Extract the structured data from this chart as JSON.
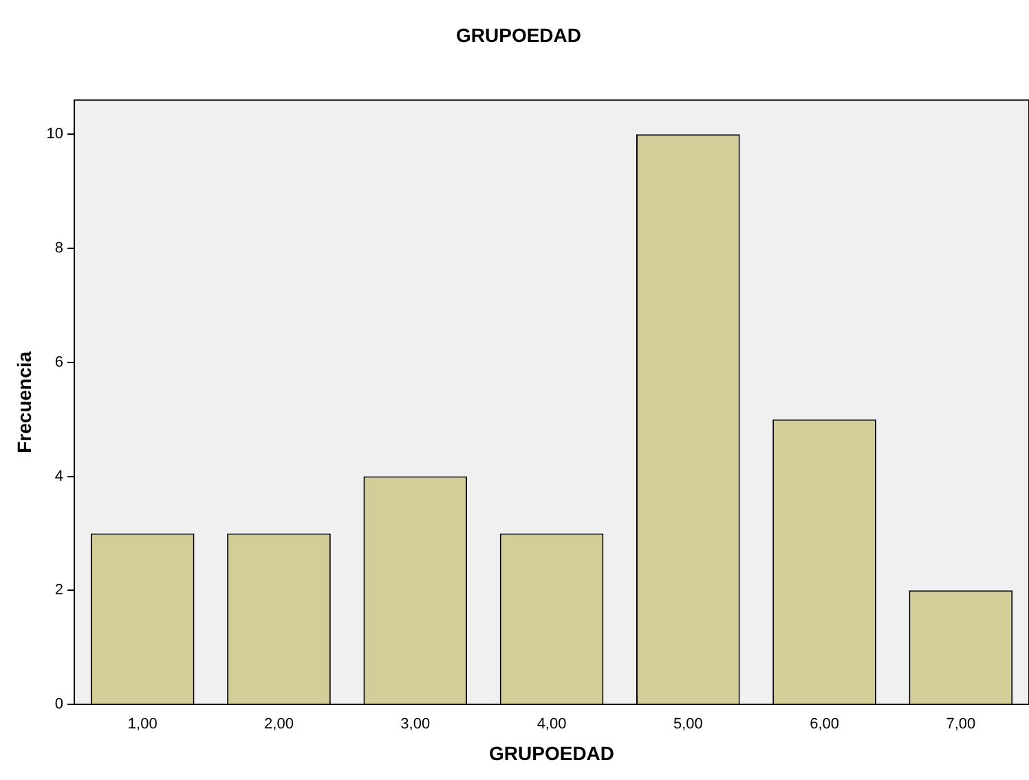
{
  "chart_data": {
    "type": "bar",
    "title": "GRUPOEDAD",
    "xlabel": "GRUPOEDAD",
    "ylabel": "Frecuencia",
    "categories": [
      "1,00",
      "2,00",
      "3,00",
      "4,00",
      "5,00",
      "6,00",
      "7,00"
    ],
    "values": [
      3,
      3,
      4,
      3,
      10,
      5,
      2
    ],
    "color": "#d3ce97",
    "ylim": [
      0,
      10.6
    ],
    "yticks": [
      0,
      2,
      4,
      6,
      8,
      10
    ],
    "grid": false,
    "legend": false
  }
}
